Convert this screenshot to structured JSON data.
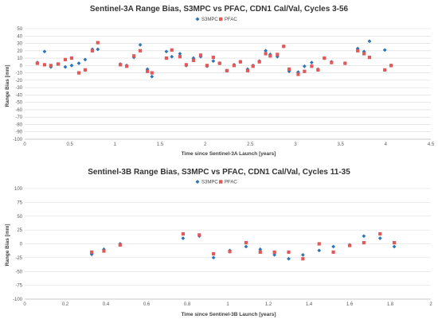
{
  "chart_data": [
    {
      "type": "scatter",
      "title": "Sentinel-3A Range Bias, S3MPC vs PFAC, CDN1 Cal/Val, Cycles 3-56",
      "xlabel": "Time since Sentinel-3A Launch [years]",
      "ylabel": "Range Bias [mm]",
      "xlim": [
        0,
        4.5
      ],
      "ylim": [
        -100,
        50
      ],
      "xticks": [
        "0",
        "0.5",
        "1",
        "1.5",
        "2",
        "2.5",
        "3",
        "3.5",
        "4",
        "4.5"
      ],
      "yticks": [
        "50",
        "40",
        "30",
        "20",
        "10",
        "0",
        "-10",
        "-20",
        "-30",
        "-40",
        "-50",
        "-60",
        "-70",
        "-80",
        "-90",
        "-100"
      ],
      "legend_position": "top-center",
      "grid": "horizontal",
      "series": [
        {
          "name": "S3MPC",
          "color": "#2e75b6",
          "marker": "diamond",
          "x": [
            0.14,
            0.22,
            0.29,
            0.37,
            0.45,
            0.52,
            0.6,
            0.67,
            0.75,
            0.81,
            1.06,
            1.13,
            1.21,
            1.28,
            1.36,
            1.41,
            1.57,
            1.63,
            1.72,
            1.79,
            1.87,
            1.95,
            2.02,
            2.09,
            2.16,
            2.24,
            2.32,
            2.39,
            2.47,
            2.53,
            2.6,
            2.67,
            2.72,
            2.8,
            2.87,
            2.93,
            3.03,
            3.1,
            3.18,
            3.25,
            3.32,
            3.4,
            3.55,
            3.69,
            3.76,
            3.82,
            3.99,
            4.06
          ],
          "y": [
            4,
            19,
            -2,
            2,
            -2,
            0,
            3,
            8,
            22,
            22,
            2,
            0,
            11,
            28,
            -5,
            -15,
            19,
            12,
            16,
            0,
            10,
            12,
            -1,
            6,
            3,
            -7,
            1,
            5,
            -5,
            0,
            6,
            20,
            15,
            12,
            26,
            -8,
            -9,
            -1,
            4,
            -5,
            10,
            5,
            3,
            23,
            19,
            33,
            21,
            0
          ],
          "note": "scatter points estimated visually"
        },
        {
          "name": "PFAC",
          "color": "#e05a5a",
          "marker": "square",
          "x": [
            0.14,
            0.22,
            0.29,
            0.37,
            0.45,
            0.52,
            0.6,
            0.67,
            0.75,
            0.81,
            1.06,
            1.13,
            1.21,
            1.28,
            1.36,
            1.41,
            1.57,
            1.63,
            1.72,
            1.79,
            1.87,
            1.95,
            2.02,
            2.09,
            2.16,
            2.24,
            2.32,
            2.39,
            2.47,
            2.53,
            2.6,
            2.67,
            2.72,
            2.8,
            2.87,
            2.93,
            3.03,
            3.1,
            3.18,
            3.25,
            3.32,
            3.4,
            3.55,
            3.69,
            3.76,
            3.82,
            3.99,
            4.06
          ],
          "y": [
            3,
            1,
            0,
            2,
            8,
            10,
            -10,
            -6,
            20,
            31,
            1,
            -1,
            13,
            20,
            -8,
            -10,
            10,
            21,
            12,
            1,
            7,
            14,
            0,
            11,
            3,
            -7,
            0,
            5,
            -7,
            -1,
            5,
            16,
            13,
            15,
            26,
            -5,
            -12,
            -8,
            -1,
            -6,
            10,
            4,
            3,
            20,
            16,
            11,
            -6,
            0
          ]
        }
      ]
    },
    {
      "type": "scatter",
      "title": "Sentinel-3B Range Bias, S3MPC vs PFAC, CDN1 Cal/Val, Cycles 11-35",
      "xlabel": "Time since Sentinel-3B Launch [years]",
      "ylabel": "Range Bias [mm]",
      "xlim": [
        0,
        2
      ],
      "ylim": [
        -100,
        100
      ],
      "xticks": [
        "0",
        "0.2",
        "0.4",
        "0.6",
        "0.8",
        "1",
        "1.2",
        "1.4",
        "1.6",
        "1.8",
        "2"
      ],
      "yticks": [
        "100",
        "75",
        "50",
        "25",
        "0",
        "-25",
        "-50",
        "-75",
        "-100"
      ],
      "legend_position": "top-center",
      "grid": "horizontal",
      "series": [
        {
          "name": "S3MPC",
          "color": "#2e75b6",
          "marker": "diamond",
          "x": [
            0.33,
            0.39,
            0.47,
            0.78,
            0.86,
            0.93,
            1.01,
            1.09,
            1.16,
            1.23,
            1.3,
            1.37,
            1.45,
            1.52,
            1.6,
            1.67,
            1.75,
            1.82
          ],
          "y": [
            -19,
            -10,
            0,
            10,
            14,
            -25,
            -12,
            -5,
            -10,
            -20,
            -27,
            -20,
            -12,
            -5,
            -2,
            14,
            10,
            -5
          ],
          "note": "scatter points estimated visually"
        },
        {
          "name": "PFAC",
          "color": "#e05a5a",
          "marker": "square",
          "x": [
            0.33,
            0.39,
            0.47,
            0.78,
            0.86,
            0.93,
            1.01,
            1.09,
            1.16,
            1.23,
            1.3,
            1.37,
            1.45,
            1.52,
            1.6,
            1.67,
            1.75,
            1.82
          ],
          "y": [
            -15,
            -13,
            -2,
            18,
            16,
            -18,
            -14,
            2,
            -15,
            -15,
            -15,
            -27,
            0,
            -15,
            -3,
            2,
            18,
            2
          ]
        }
      ]
    }
  ]
}
